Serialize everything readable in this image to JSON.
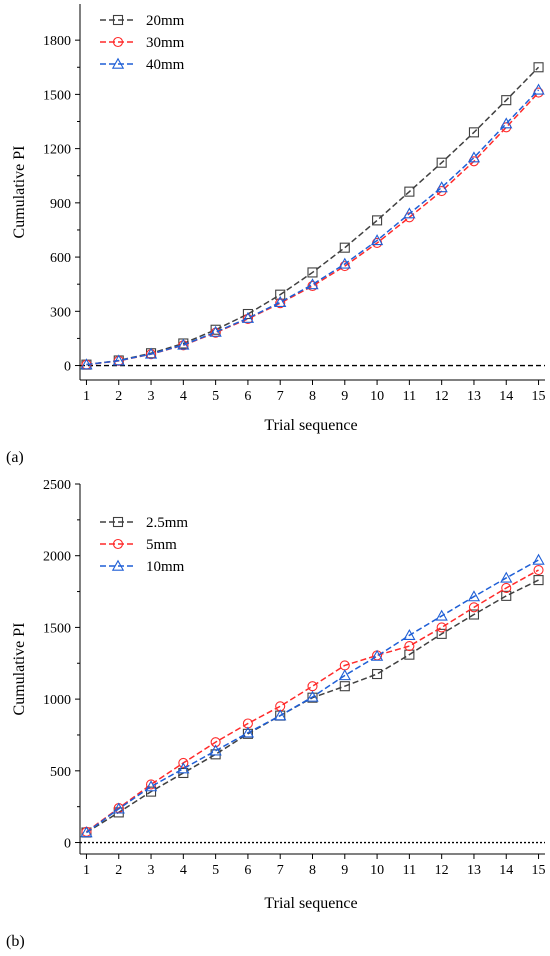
{
  "chart_data": [
    {
      "type": "line",
      "panel_label": "(a)",
      "xlabel": "Trial sequence",
      "ylabel": "Cumulative PI",
      "x": [
        1,
        2,
        3,
        4,
        5,
        6,
        7,
        8,
        9,
        10,
        11,
        12,
        13,
        14,
        15
      ],
      "xlim": [
        0.8,
        15.2
      ],
      "ylim": [
        -80,
        2000
      ],
      "yticks": [
        0,
        300,
        600,
        900,
        1200,
        1500,
        1800
      ],
      "reference_line": {
        "y": 0,
        "style": "dashed"
      },
      "legend_position": "top-left",
      "series": [
        {
          "name": "20mm",
          "color": "#404040",
          "marker": "square",
          "values": [
            5,
            28,
            68,
            122,
            198,
            285,
            392,
            515,
            652,
            803,
            962,
            1122,
            1290,
            1468,
            1650
          ]
        },
        {
          "name": "30mm",
          "color": "#ff2a2a",
          "marker": "circle",
          "values": [
            5,
            26,
            63,
            112,
            182,
            258,
            345,
            440,
            550,
            678,
            820,
            965,
            1130,
            1318,
            1510
          ]
        },
        {
          "name": "40mm",
          "color": "#1f5fd6",
          "marker": "triangle",
          "values": [
            5,
            27,
            64,
            114,
            185,
            262,
            350,
            448,
            562,
            692,
            840,
            985,
            1150,
            1338,
            1525
          ]
        }
      ]
    },
    {
      "type": "line",
      "panel_label": "(b)",
      "xlabel": "Trial sequence",
      "ylabel": "Cumulative PI",
      "x": [
        1,
        2,
        3,
        4,
        5,
        6,
        7,
        8,
        9,
        10,
        11,
        12,
        13,
        14,
        15
      ],
      "xlim": [
        0.8,
        15.2
      ],
      "ylim": [
        -80,
        2500
      ],
      "yticks": [
        0,
        500,
        1000,
        1500,
        2000,
        2500
      ],
      "reference_line": {
        "y": 0,
        "style": "dotted"
      },
      "legend_position": "top-left",
      "series": [
        {
          "name": "2.5mm",
          "color": "#404040",
          "marker": "square",
          "values": [
            70,
            210,
            355,
            485,
            615,
            758,
            885,
            1010,
            1090,
            1175,
            1310,
            1455,
            1590,
            1720,
            1830
          ]
        },
        {
          "name": "5mm",
          "color": "#ff2a2a",
          "marker": "circle",
          "values": [
            75,
            240,
            405,
            555,
            700,
            830,
            950,
            1090,
            1235,
            1305,
            1370,
            1500,
            1640,
            1775,
            1900
          ]
        },
        {
          "name": "10mm",
          "color": "#1f5fd6",
          "marker": "triangle",
          "values": [
            70,
            235,
            390,
            515,
            640,
            765,
            885,
            1015,
            1165,
            1300,
            1445,
            1580,
            1715,
            1845,
            1970
          ]
        }
      ]
    }
  ]
}
